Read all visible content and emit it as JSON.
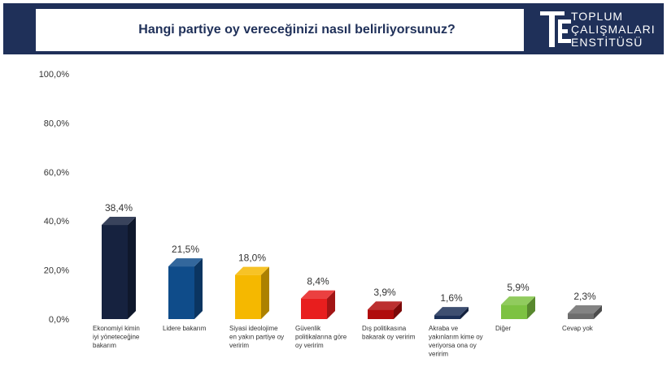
{
  "header": {
    "title": "Hangi partiye oy vereceğinizi nasıl belirliyorsunuz?",
    "logo_lines": [
      "TOPLUM",
      "ÇALIŞMALARI",
      "ENSTİTÜSÜ"
    ],
    "logo_icon": "tce-monogram-icon",
    "band_color": "#1f3059"
  },
  "chart_data": {
    "type": "bar",
    "title": "Hangi partiye oy vereceğinizi nasıl belirliyorsunuz?",
    "xlabel": "",
    "ylabel": "",
    "ylim": [
      0,
      100
    ],
    "yticks": [
      0,
      20,
      40,
      60,
      80,
      100
    ],
    "ytick_labels": [
      "0,0%",
      "20,0%",
      "40,0%",
      "60,0%",
      "80,0%",
      "100,0%"
    ],
    "grid": false,
    "legend": "none",
    "categories": [
      [
        "Ekonomiyi kimin",
        "iyi yöneteceğine",
        "bakarım"
      ],
      [
        "Lidere bakarım"
      ],
      [
        "Siyasi ideolojime",
        "en yakın partiye oy",
        "veririm"
      ],
      [
        "Güvenlik",
        "politikalarına göre",
        "oy veririm"
      ],
      [
        "Dış politikasına",
        "bakarak oy veririm"
      ],
      [
        "Akraba ve",
        "yakınlarım kime oy",
        "veriyorsa ona oy",
        "veririm"
      ],
      [
        "Diğer"
      ],
      [
        "Cevap yok"
      ]
    ],
    "values": [
      38.4,
      21.5,
      18.0,
      8.4,
      3.9,
      1.6,
      5.9,
      2.3
    ],
    "value_labels": [
      "38,4%",
      "21,5%",
      "18,0%",
      "8,4%",
      "3,9%",
      "1,6%",
      "5,9%",
      "2,3%"
    ],
    "colors": [
      "#16223f",
      "#0f4c8a",
      "#f5b800",
      "#e81e1e",
      "#b00c0c",
      "#1c3058",
      "#7dc242",
      "#6d6d6d"
    ]
  }
}
